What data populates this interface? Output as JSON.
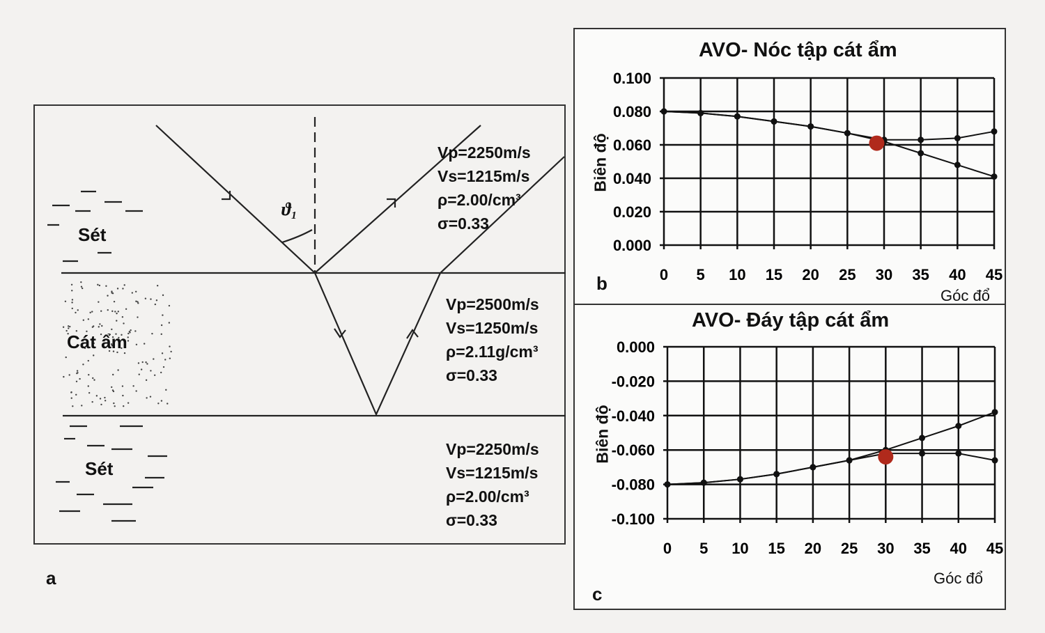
{
  "panel_a": {
    "label": "a",
    "angle_label": "ϑ₁",
    "layers": [
      {
        "name": "Sét",
        "props": [
          "Vp=2250m/s",
          "Vs=1215m/s",
          "ρ=2.00/cm³",
          "σ=0.33"
        ]
      },
      {
        "name": "Cát ẩm",
        "props": [
          "Vp=2500m/s",
          "Vs=1250m/s",
          "ρ=2.11g/cm³",
          "σ=0.33"
        ]
      },
      {
        "name": "Sét",
        "props": [
          "Vp=2250m/s",
          "Vs=1215m/s",
          "ρ=2.00/cm³",
          "σ=0.33"
        ]
      }
    ]
  },
  "chart_data": [
    {
      "type": "line",
      "panel_label": "b",
      "title": "AVO- Nóc tập cát ẩm",
      "xlabel": "Góc đổ",
      "ylabel": "Biên độ",
      "x": [
        0,
        5,
        10,
        15,
        20,
        25,
        30,
        35,
        40,
        45
      ],
      "xticks": [
        "0",
        "5",
        "10",
        "15",
        "20",
        "25",
        "30",
        "35",
        "40",
        "45"
      ],
      "yticks": [
        "0.100",
        "0.080",
        "0.060",
        "0.040",
        "0.020",
        "0.000"
      ],
      "ylim": [
        0,
        0.1
      ],
      "xlim": [
        0,
        45
      ],
      "grid": true,
      "series": [
        {
          "name": "series-1",
          "values": [
            0.08,
            0.079,
            0.077,
            0.074,
            0.071,
            0.067,
            0.062,
            0.055,
            0.048,
            0.041
          ]
        },
        {
          "name": "series-2",
          "values": [
            0.08,
            0.079,
            0.077,
            0.074,
            0.071,
            0.067,
            0.063,
            0.063,
            0.064,
            0.068
          ]
        }
      ],
      "highlight": {
        "x": 29,
        "y": 0.061,
        "color": "#b02a1c"
      }
    },
    {
      "type": "line",
      "panel_label": "c",
      "title": "AVO- Đáy tập cát ẩm",
      "xlabel": "Góc đổ",
      "ylabel": "Biên độ",
      "x": [
        0,
        5,
        10,
        15,
        20,
        25,
        30,
        35,
        40,
        45
      ],
      "xticks": [
        "0",
        "5",
        "10",
        "15",
        "20",
        "25",
        "30",
        "35",
        "40",
        "45"
      ],
      "yticks": [
        "0.000",
        "-0.020",
        "-0.040",
        "-0.060",
        "-0.080",
        "-0.100"
      ],
      "ylim": [
        -0.1,
        0
      ],
      "xlim": [
        0,
        45
      ],
      "grid": true,
      "series": [
        {
          "name": "series-1",
          "values": [
            -0.08,
            -0.079,
            -0.077,
            -0.074,
            -0.07,
            -0.066,
            -0.06,
            -0.053,
            -0.046,
            -0.038
          ]
        },
        {
          "name": "series-2",
          "values": [
            -0.08,
            -0.079,
            -0.077,
            -0.074,
            -0.07,
            -0.066,
            -0.062,
            -0.062,
            -0.062,
            -0.066
          ]
        }
      ],
      "highlight": {
        "x": 30,
        "y": -0.064,
        "color": "#b02a1c"
      }
    }
  ]
}
